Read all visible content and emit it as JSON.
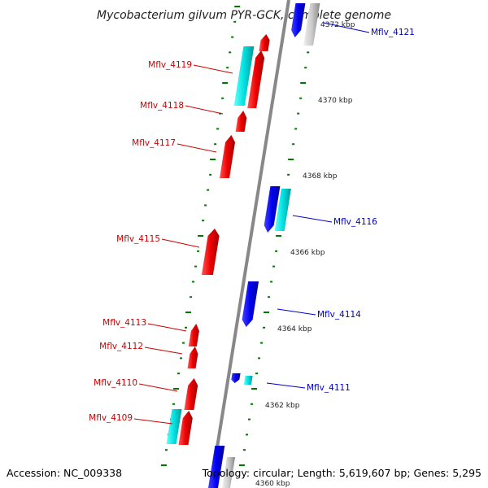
{
  "title": "Mycobacterium gilvum PYR-GCK, complete genome",
  "footer": {
    "accession": "Accession: NC_009338",
    "summary": "Topology: circular; Length: 5,619,607 bp; Genes: 5,295"
  },
  "colors": {
    "forward_gene": "#ff0000",
    "reverse_gene": "#0000ff",
    "forward_cds": "#00e5e5",
    "reverse_cds": "#c8c8c8",
    "backbone": "#888888",
    "tick": "#007700",
    "forward_label": "#cc0000",
    "reverse_label": "#0000cc"
  },
  "gene_labels": [
    {
      "name": "Mflv_4121",
      "strand": "reverse"
    },
    {
      "name": "Mflv_4119",
      "strand": "forward"
    },
    {
      "name": "Mflv_4118",
      "strand": "forward"
    },
    {
      "name": "Mflv_4117",
      "strand": "forward"
    },
    {
      "name": "Mflv_4116",
      "strand": "reverse"
    },
    {
      "name": "Mflv_4115",
      "strand": "forward"
    },
    {
      "name": "Mflv_4114",
      "strand": "reverse"
    },
    {
      "name": "Mflv_4113",
      "strand": "forward"
    },
    {
      "name": "Mflv_4112",
      "strand": "forward"
    },
    {
      "name": "Mflv_4111",
      "strand": "reverse"
    },
    {
      "name": "Mflv_4110",
      "strand": "forward"
    },
    {
      "name": "Mflv_4109",
      "strand": "forward"
    }
  ],
  "kbp_labels": [
    "4372 kbp",
    "4370 kbp",
    "4368 kbp",
    "4366 kbp",
    "4364 kbp",
    "4362 kbp",
    "4360 kbp"
  ]
}
